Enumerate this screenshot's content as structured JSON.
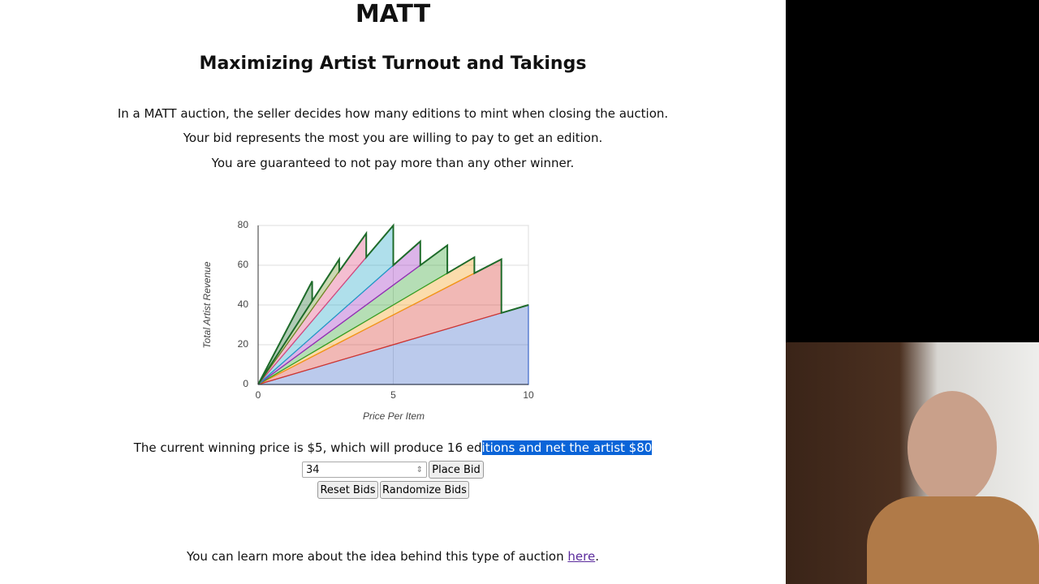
{
  "header": {
    "title": "MATT",
    "subtitle": "Maximizing Artist Turnout and Takings"
  },
  "intro": [
    "In a MATT auction, the seller decides how many editions to mint when closing the auction.",
    "Your bid represents the most you are willing to pay to get an edition.",
    "You are guaranteed to not pay more than any other winner."
  ],
  "chart_data": {
    "type": "stacked_area",
    "ylabel": "Total Artist Revenue",
    "xlabel": "Price Per Item",
    "xlim": [
      0,
      10
    ],
    "xticks": [
      0,
      5,
      10
    ],
    "ylim": [
      0,
      80
    ],
    "yticks": [
      0,
      20,
      40,
      60,
      80
    ],
    "grid": true,
    "x": [
      0,
      2,
      2,
      3,
      3,
      4,
      4,
      5,
      5,
      6,
      6,
      7,
      7,
      8,
      8,
      9,
      9,
      10
    ],
    "series": [
      {
        "color": "#3c67c9",
        "values": [
          0,
          8,
          8,
          12,
          12,
          16,
          16,
          20,
          20,
          24,
          24,
          28,
          28,
          32,
          32,
          36,
          36,
          40
        ]
      },
      {
        "color": "#d8342a",
        "values": [
          0,
          6,
          6,
          9,
          9,
          12,
          12,
          15,
          15,
          18,
          18,
          21,
          21,
          24,
          24,
          27,
          0,
          0
        ]
      },
      {
        "color": "#f39c12",
        "values": [
          0,
          2,
          2,
          3,
          3,
          4,
          4,
          5,
          5,
          6,
          6,
          7,
          7,
          8,
          0,
          0,
          0,
          0
        ]
      },
      {
        "color": "#2ca02c",
        "values": [
          0,
          4,
          4,
          6,
          6,
          8,
          8,
          10,
          10,
          12,
          12,
          14,
          0,
          0,
          0,
          0,
          0,
          0
        ]
      },
      {
        "color": "#9b27c0",
        "values": [
          0,
          4,
          4,
          6,
          6,
          8,
          8,
          10,
          10,
          12,
          0,
          0,
          0,
          0,
          0,
          0,
          0,
          0
        ]
      },
      {
        "color": "#1ba3c6",
        "values": [
          0,
          8,
          8,
          12,
          12,
          16,
          16,
          20,
          0,
          0,
          0,
          0,
          0,
          0,
          0,
          0,
          0,
          0
        ]
      },
      {
        "color": "#e0457b",
        "values": [
          0,
          6,
          6,
          9,
          9,
          12,
          0,
          0,
          0,
          0,
          0,
          0,
          0,
          0,
          0,
          0,
          0,
          0
        ]
      },
      {
        "color": "#6b8e23",
        "values": [
          0,
          4,
          4,
          6,
          0,
          0,
          0,
          0,
          0,
          0,
          0,
          0,
          0,
          0,
          0,
          0,
          0,
          0
        ]
      },
      {
        "color": "#1e6b2a",
        "values": [
          0,
          10,
          0,
          0,
          0,
          0,
          0,
          0,
          0,
          0,
          0,
          0,
          0,
          0,
          0,
          0,
          0,
          0
        ]
      }
    ]
  },
  "status": {
    "plain": "The current winning price is $5, which will produce 16 ed",
    "selected": "itions and net the artist $80"
  },
  "form": {
    "bid_value": "34",
    "place_bid": "Place Bid",
    "reset": "Reset Bids",
    "randomize": "Randomize Bids"
  },
  "footer": {
    "text": "You can learn more about the idea behind this type of auction ",
    "link": "here",
    "end": "."
  }
}
